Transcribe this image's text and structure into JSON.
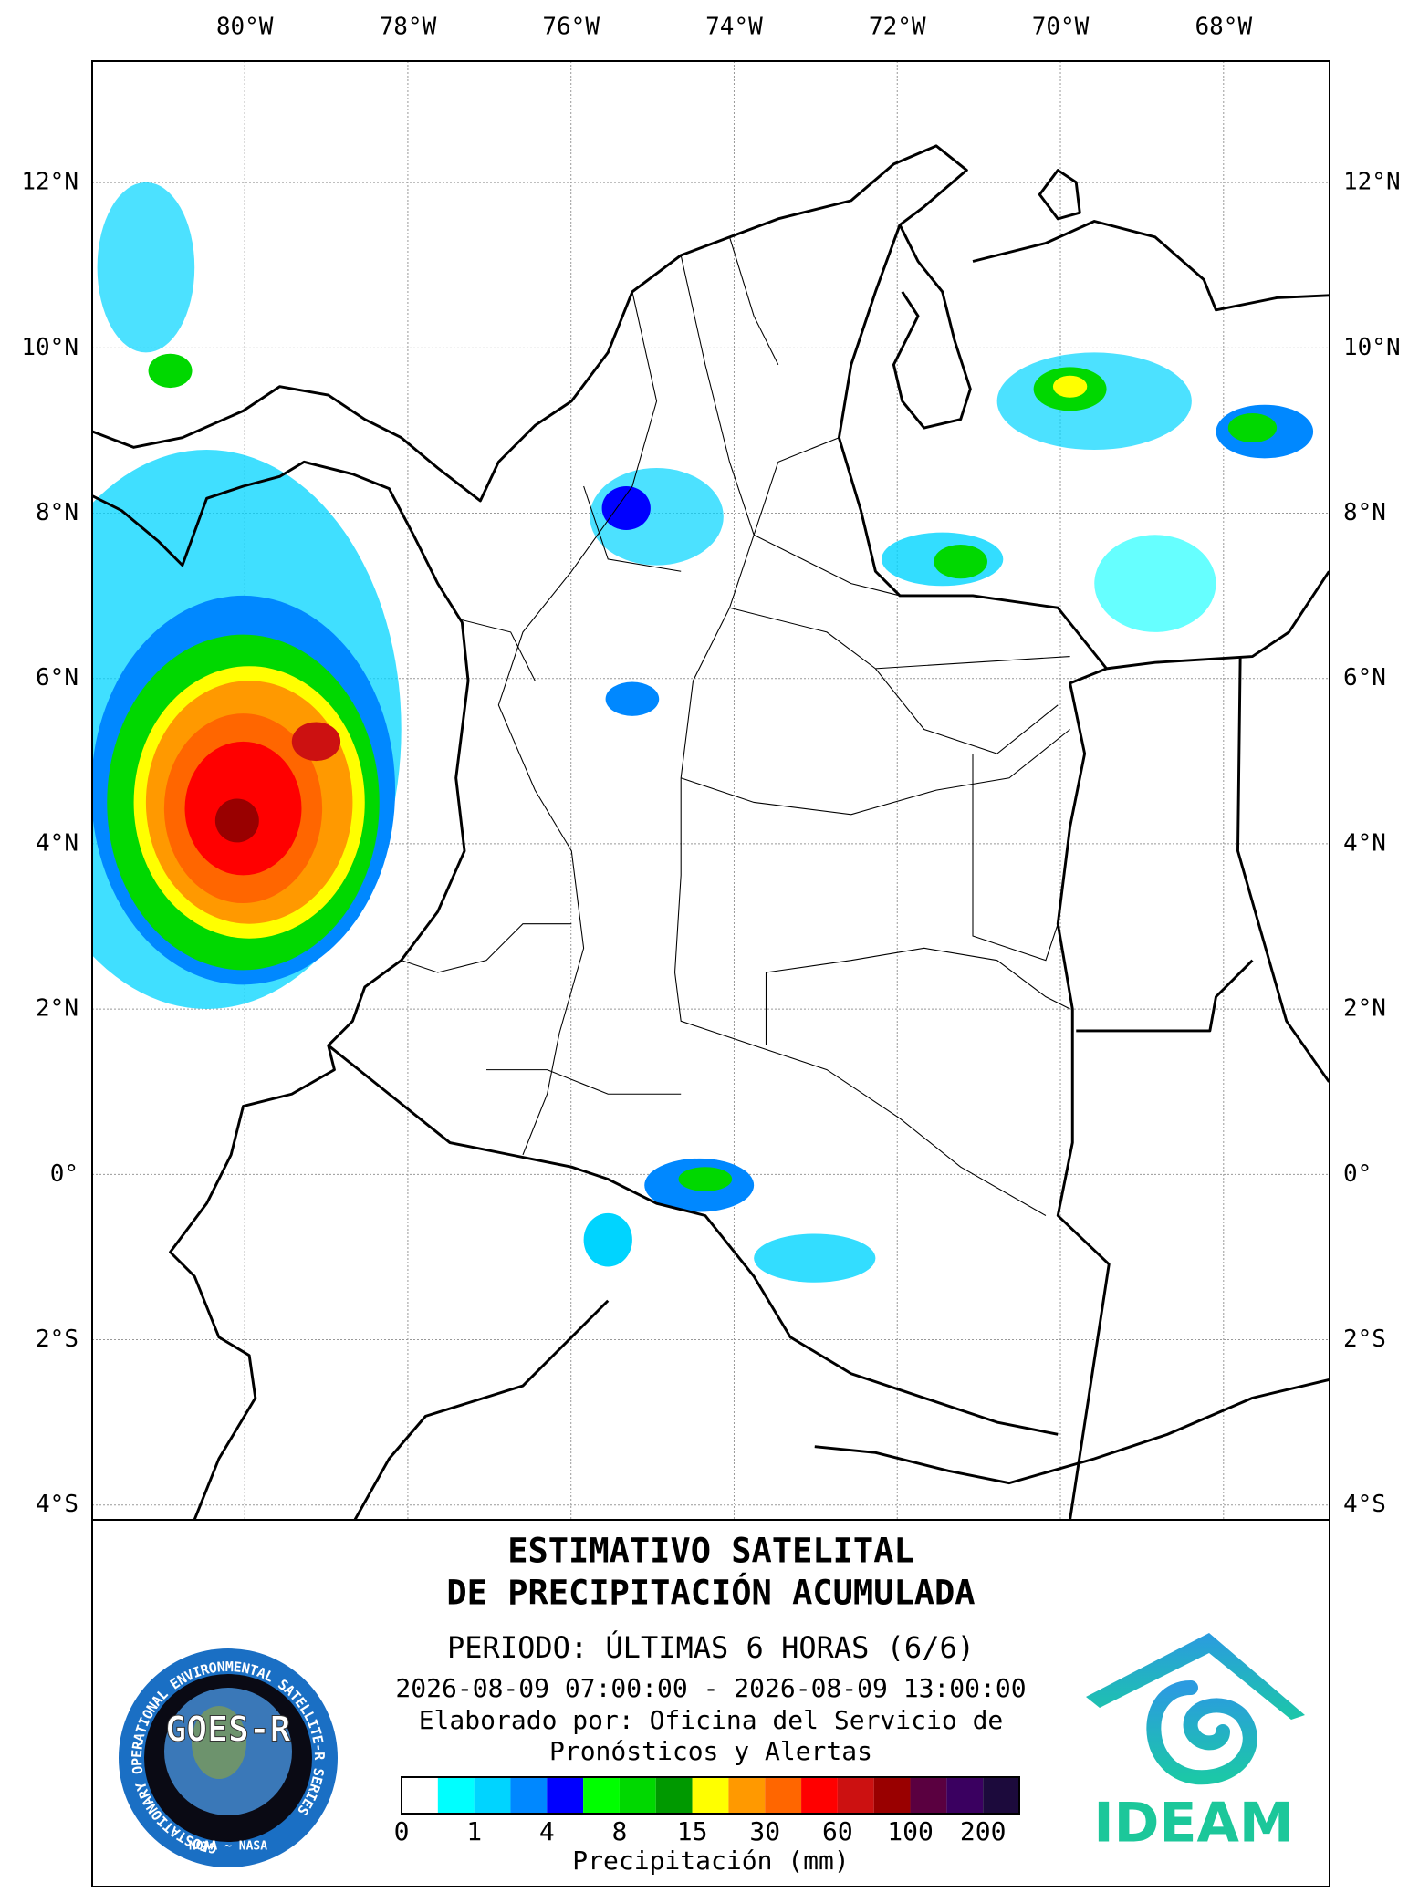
{
  "map": {
    "lon_ticks": [
      {
        "value": -80,
        "label": "80°W"
      },
      {
        "value": -78,
        "label": "78°W"
      },
      {
        "value": -76,
        "label": "76°W"
      },
      {
        "value": -74,
        "label": "74°W"
      },
      {
        "value": -72,
        "label": "72°W"
      },
      {
        "value": -70,
        "label": "70°W"
      },
      {
        "value": -68,
        "label": "68°W"
      }
    ],
    "lat_ticks": [
      {
        "value": 12,
        "label": "12°N"
      },
      {
        "value": 10,
        "label": "10°N"
      },
      {
        "value": 8,
        "label": "8°N"
      },
      {
        "value": 6,
        "label": "6°N"
      },
      {
        "value": 4,
        "label": "4°N"
      },
      {
        "value": 2,
        "label": "2°N"
      },
      {
        "value": 0,
        "label": "0°"
      },
      {
        "value": -2,
        "label": "2°S"
      },
      {
        "value": -4,
        "label": "4°S"
      }
    ],
    "lon_range": [
      -81.87,
      -66.7
    ],
    "lat_range": [
      -4.18,
      13.47
    ],
    "grid": true
  },
  "legend": {
    "title": [
      "ESTIMATIVO SATELITAL",
      "DE PRECIPITACIÓN ACUMULADA"
    ],
    "period": "PERIODO: ÚLTIMAS 6 HORAS (6/6)",
    "dates": "2026-08-09 07:00:00 - 2026-08-09 13:00:00",
    "credit": [
      "Elaborado por: Oficina del Servicio de",
      "Pronósticos y Alertas"
    ],
    "colorbar": {
      "levels": [
        0,
        1,
        4,
        8,
        15,
        30,
        60,
        100,
        200
      ],
      "colors": [
        "#ffffff",
        "#00ffff",
        "#00d4ff",
        "#0088ff",
        "#0000ff",
        "#00ff00",
        "#00d800",
        "#009900",
        "#ffff00",
        "#ff9900",
        "#ff6600",
        "#ff0000",
        "#cc1111",
        "#990000",
        "#5a0040",
        "#3a0060",
        "#1c0a3c"
      ],
      "label": "Precipitación (mm)"
    }
  },
  "logos": {
    "goes": {
      "name": "GOES-R",
      "ring": "GEOSTATIONARY OPERATIONAL ENVIRONMENTAL SATELLITE-R SERIES",
      "agencies": "NOAA ~ NASA"
    },
    "ideam": {
      "name": "IDEAM"
    }
  }
}
